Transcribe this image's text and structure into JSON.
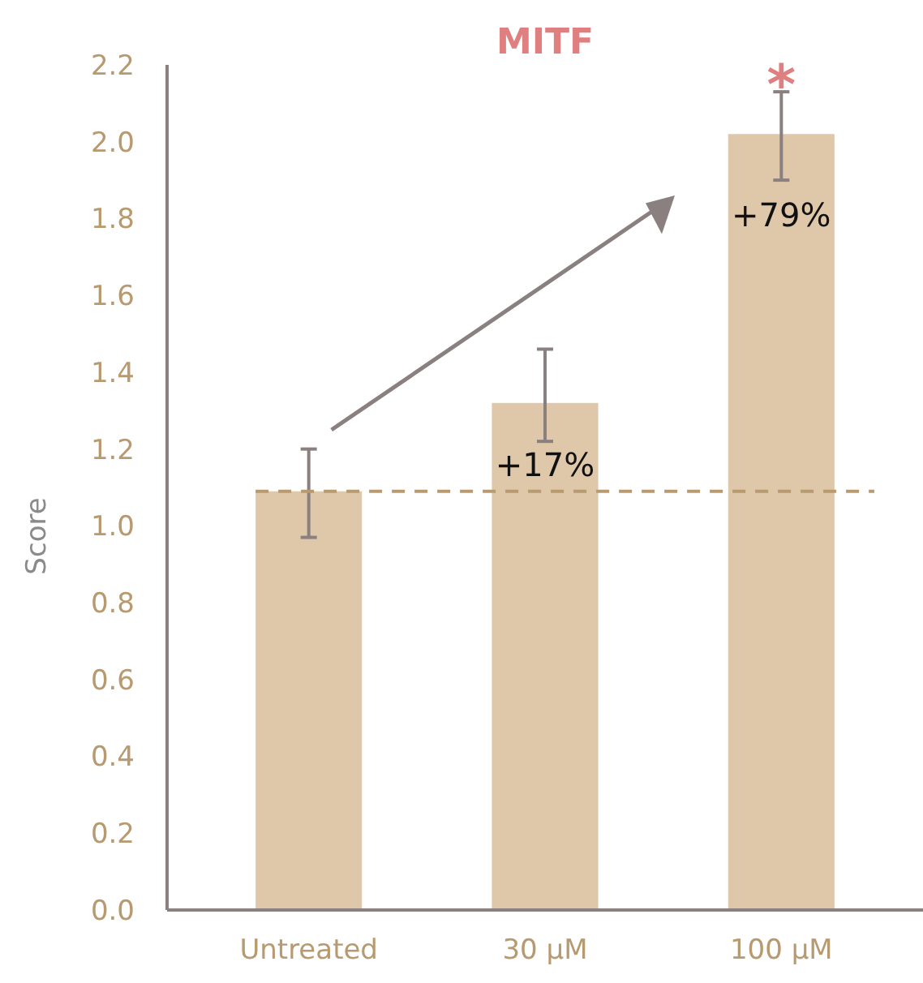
{
  "chart_data": {
    "type": "bar",
    "title": "MITF",
    "ylabel": "Score",
    "categories": [
      "Untreated",
      "30 µM",
      "100 µM"
    ],
    "values": [
      1.09,
      1.32,
      2.02
    ],
    "color": "#dfc7a9",
    "errors": [
      [
        0.97,
        1.2
      ],
      [
        1.22,
        1.46
      ],
      [
        1.9,
        2.13
      ]
    ],
    "ylim": [
      0,
      2.2
    ],
    "yticks": [
      {
        "value": 0,
        "label": "0.0"
      },
      0.2,
      0.4,
      0.6,
      0.8,
      {
        "value": 1,
        "label": "1.0"
      },
      1.2,
      1.4,
      1.6,
      1.8,
      {
        "value": 2,
        "label": "2.0"
      },
      2.2
    ],
    "grid": false,
    "ref_lines": [
      {
        "axis": "y",
        "value": 1.09,
        "color": "#b89a70",
        "line_style": "dashed"
      }
    ],
    "annotations": [
      "+17%",
      "+79%",
      "*"
    ]
  }
}
